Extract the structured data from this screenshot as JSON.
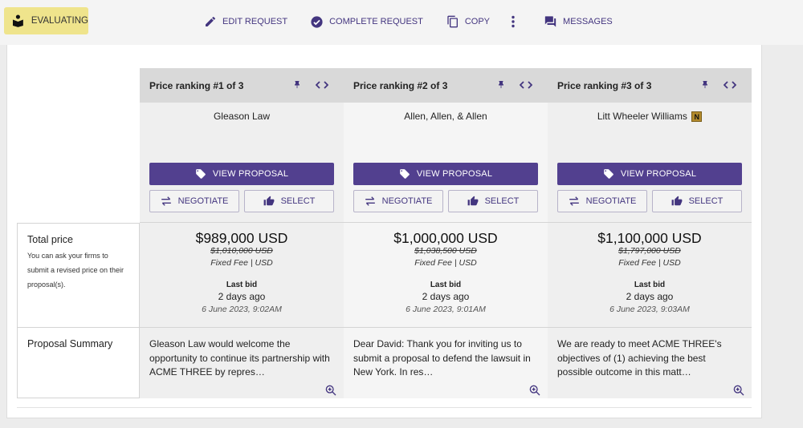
{
  "header": {
    "status": "EVALUATING",
    "actions": {
      "edit": "EDIT REQUEST",
      "complete": "COMPLETE REQUEST",
      "copy": "COPY",
      "messages": "MESSAGES"
    }
  },
  "rows": {
    "total_price": {
      "title": "Total price",
      "help": "You can ask your firms to submit a revised price on their proposal(s)."
    },
    "proposal_summary": {
      "title": "Proposal Summary"
    }
  },
  "buttons": {
    "view": "VIEW PROPOSAL",
    "negotiate": "NEGOTIATE",
    "select": "SELECT"
  },
  "proposals": [
    {
      "ranking": "Price ranking #1 of 3",
      "firm": "Gleason Law",
      "price": "$989,000 USD",
      "old_price": "$1,010,000 USD",
      "fee": "Fixed Fee | USD",
      "last_bid_label": "Last bid",
      "last_bid_ago": "2 days ago",
      "last_bid_date": "6 June 2023, 9:02AM",
      "summary": "Gleason Law would welcome the opportunity to continue its partnership with ACME THREE by repres…"
    },
    {
      "ranking": "Price ranking #2 of 3",
      "firm": "Allen, Allen, & Allen",
      "price": "$1,000,000 USD",
      "old_price": "$1,038,500 USD",
      "fee": "Fixed Fee | USD",
      "last_bid_label": "Last bid",
      "last_bid_ago": "2 days ago",
      "last_bid_date": "6 June 2023, 9:01AM",
      "summary": "Dear David: Thank you for inviting us to submit a proposal to defend the lawsuit in New York. In res…"
    },
    {
      "ranking": "Price ranking #3 of 3",
      "firm": "Litt Wheeler Williams",
      "firm_badge": "N",
      "price": "$1,100,000 USD",
      "old_price": "$1,797,000 USD",
      "fee": "Fixed Fee | USD",
      "last_bid_label": "Last bid",
      "last_bid_ago": "2 days ago",
      "last_bid_date": "6 June 2023, 9:03AM",
      "summary": "We are ready to meet ACME THREE's objectives of (1) achieving the best possible outcome in this matt…"
    }
  ],
  "colors": {
    "accent": "#52408f",
    "status_chip": "#efe48c",
    "header_bg": "#d9d9d9",
    "column_bg": "#efefef"
  }
}
